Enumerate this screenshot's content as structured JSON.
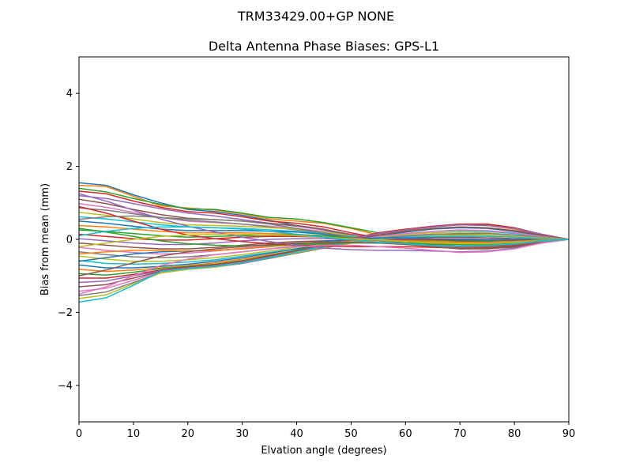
{
  "chart_data": {
    "type": "line",
    "suptitle": "TRM33429.00+GP  NONE",
    "title": "Delta Antenna Phase Biases: GPS-L1",
    "xlabel": "Elvation angle (degrees)",
    "ylabel": "Bias from mean (mm)",
    "xlim": [
      0,
      90
    ],
    "ylim": [
      -5,
      5
    ],
    "x_ticks": [
      0,
      10,
      20,
      30,
      40,
      50,
      60,
      70,
      80,
      90
    ],
    "x_tick_labels": [
      "0",
      "10",
      "20",
      "30",
      "40",
      "50",
      "60",
      "70",
      "80",
      "90"
    ],
    "y_ticks": [
      -4,
      -2,
      0,
      2,
      4
    ],
    "y_tick_labels": [
      "−4",
      "−2",
      "0",
      "2",
      "4"
    ],
    "grid": false,
    "legend": "none",
    "x": [
      0,
      5,
      10,
      15,
      20,
      25,
      30,
      35,
      40,
      45,
      50,
      55,
      60,
      65,
      70,
      75,
      80,
      85,
      90
    ],
    "colors": [
      "#1f77b4",
      "#ff7f0e",
      "#2ca02c",
      "#d62728",
      "#9467bd",
      "#8c564b",
      "#e377c2",
      "#7f7f7f",
      "#bcbd22",
      "#17becf"
    ],
    "series": [
      {
        "values": [
          1.55,
          1.48,
          1.22,
          1.0,
          0.82,
          0.76,
          0.66,
          0.52,
          0.38,
          0.26,
          0.1,
          -0.02,
          -0.12,
          -0.2,
          -0.26,
          -0.24,
          -0.18,
          -0.08,
          0.0
        ]
      },
      {
        "values": [
          1.48,
          1.45,
          1.18,
          0.92,
          0.86,
          0.8,
          0.7,
          0.56,
          0.5,
          0.44,
          0.3,
          0.12,
          -0.02,
          -0.14,
          -0.24,
          -0.26,
          -0.2,
          -0.1,
          0.0
        ]
      },
      {
        "values": [
          1.4,
          1.3,
          1.12,
          0.96,
          0.84,
          0.82,
          0.72,
          0.6,
          0.56,
          0.46,
          0.32,
          0.18,
          0.04,
          -0.1,
          -0.2,
          -0.24,
          -0.22,
          -0.1,
          0.0
        ]
      },
      {
        "values": [
          1.32,
          1.25,
          1.05,
          0.88,
          0.76,
          0.72,
          0.62,
          0.5,
          0.44,
          0.34,
          0.18,
          0.04,
          -0.06,
          -0.14,
          -0.18,
          -0.18,
          -0.14,
          -0.06,
          0.0
        ]
      },
      {
        "values": [
          1.2,
          1.12,
          0.98,
          0.84,
          0.72,
          0.64,
          0.54,
          0.44,
          0.36,
          0.26,
          0.14,
          0.04,
          -0.04,
          -0.1,
          -0.14,
          -0.14,
          -0.1,
          -0.04,
          0.0
        ]
      },
      {
        "values": [
          1.1,
          0.98,
          0.82,
          0.68,
          0.58,
          0.54,
          0.5,
          0.44,
          0.38,
          0.28,
          0.12,
          -0.02,
          -0.1,
          -0.16,
          -0.2,
          -0.18,
          -0.12,
          -0.04,
          0.0
        ]
      },
      {
        "values": [
          0.98,
          0.88,
          0.74,
          0.6,
          0.5,
          0.46,
          0.42,
          0.36,
          0.3,
          0.22,
          0.1,
          0.0,
          -0.06,
          -0.1,
          -0.12,
          -0.12,
          -0.08,
          -0.04,
          0.0
        ]
      },
      {
        "values": [
          0.86,
          0.8,
          0.7,
          0.6,
          0.52,
          0.48,
          0.42,
          0.34,
          0.26,
          0.18,
          0.08,
          0.0,
          -0.04,
          -0.08,
          -0.1,
          -0.1,
          -0.08,
          -0.04,
          0.0
        ]
      },
      {
        "values": [
          0.74,
          0.66,
          0.56,
          0.46,
          0.4,
          0.38,
          0.36,
          0.32,
          0.28,
          0.2,
          0.1,
          0.02,
          -0.04,
          -0.08,
          -0.1,
          -0.08,
          -0.06,
          -0.02,
          0.0
        ]
      },
      {
        "values": [
          0.62,
          0.56,
          0.48,
          0.4,
          0.34,
          0.32,
          0.3,
          0.26,
          0.22,
          0.16,
          0.08,
          0.02,
          -0.02,
          -0.06,
          -0.08,
          -0.08,
          -0.06,
          -0.02,
          0.0
        ]
      },
      {
        "values": [
          0.5,
          0.44,
          0.36,
          0.28,
          0.24,
          0.24,
          0.24,
          0.22,
          0.2,
          0.14,
          0.06,
          0.0,
          -0.02,
          -0.04,
          -0.06,
          -0.06,
          -0.04,
          -0.02,
          0.0
        ]
      },
      {
        "values": [
          0.38,
          0.34,
          0.28,
          0.22,
          0.18,
          0.18,
          0.18,
          0.16,
          0.14,
          0.1,
          0.04,
          0.0,
          -0.02,
          -0.04,
          -0.04,
          -0.04,
          -0.04,
          -0.02,
          0.0
        ]
      },
      {
        "values": [
          0.26,
          0.22,
          0.16,
          0.1,
          0.06,
          0.08,
          0.1,
          0.12,
          0.12,
          0.1,
          0.04,
          0.0,
          -0.02,
          -0.02,
          -0.04,
          -0.04,
          -0.02,
          0.0,
          0.0
        ]
      },
      {
        "values": [
          0.14,
          0.08,
          0.02,
          -0.02,
          -0.02,
          0.02,
          0.06,
          0.08,
          0.08,
          0.06,
          0.02,
          0.0,
          0.0,
          0.0,
          -0.02,
          -0.02,
          -0.02,
          0.0,
          0.0
        ]
      },
      {
        "values": [
          0.02,
          -0.04,
          -0.1,
          -0.14,
          -0.14,
          -0.1,
          -0.04,
          0.0,
          0.02,
          0.02,
          0.0,
          0.0,
          0.02,
          0.02,
          0.02,
          0.0,
          0.0,
          0.0,
          0.0
        ]
      },
      {
        "values": [
          -0.1,
          -0.16,
          -0.22,
          -0.26,
          -0.26,
          -0.22,
          -0.16,
          -0.1,
          -0.06,
          -0.04,
          -0.02,
          0.02,
          0.04,
          0.06,
          0.06,
          0.04,
          0.02,
          0.0,
          0.0
        ]
      },
      {
        "values": [
          -0.22,
          -0.3,
          -0.36,
          -0.4,
          -0.38,
          -0.32,
          -0.24,
          -0.18,
          -0.12,
          -0.08,
          -0.04,
          0.02,
          0.08,
          0.1,
          0.1,
          0.08,
          0.06,
          0.02,
          0.0
        ]
      },
      {
        "values": [
          -0.34,
          -0.42,
          -0.48,
          -0.5,
          -0.48,
          -0.42,
          -0.34,
          -0.26,
          -0.18,
          -0.12,
          -0.04,
          0.04,
          0.1,
          0.14,
          0.14,
          0.12,
          0.08,
          0.04,
          0.0
        ]
      },
      {
        "values": [
          -0.46,
          -0.54,
          -0.6,
          -0.6,
          -0.56,
          -0.5,
          -0.42,
          -0.32,
          -0.22,
          -0.14,
          -0.04,
          0.06,
          0.14,
          0.18,
          0.2,
          0.18,
          0.12,
          0.06,
          0.0
        ]
      },
      {
        "values": [
          -0.58,
          -0.66,
          -0.68,
          -0.66,
          -0.62,
          -0.56,
          -0.46,
          -0.36,
          -0.26,
          -0.16,
          -0.04,
          0.08,
          0.16,
          0.22,
          0.24,
          0.22,
          0.16,
          0.08,
          0.0
        ]
      },
      {
        "values": [
          -0.7,
          -0.78,
          -0.78,
          -0.74,
          -0.68,
          -0.6,
          -0.5,
          -0.38,
          -0.26,
          -0.14,
          -0.02,
          0.1,
          0.2,
          0.28,
          0.32,
          0.3,
          0.22,
          0.1,
          0.0
        ]
      },
      {
        "values": [
          -0.82,
          -0.88,
          -0.84,
          -0.78,
          -0.72,
          -0.64,
          -0.54,
          -0.42,
          -0.3,
          -0.16,
          -0.02,
          0.12,
          0.24,
          0.34,
          0.4,
          0.38,
          0.28,
          0.12,
          0.0
        ]
      },
      {
        "values": [
          -0.94,
          -0.98,
          -0.9,
          -0.8,
          -0.74,
          -0.68,
          -0.58,
          -0.44,
          -0.3,
          -0.14,
          0.02,
          0.16,
          0.26,
          0.34,
          0.4,
          0.4,
          0.3,
          0.14,
          0.0
        ]
      },
      {
        "values": [
          -1.06,
          -1.06,
          -0.96,
          -0.84,
          -0.76,
          -0.7,
          -0.6,
          -0.46,
          -0.32,
          -0.16,
          0.02,
          0.18,
          0.28,
          0.36,
          0.42,
          0.42,
          0.32,
          0.14,
          0.0
        ]
      },
      {
        "values": [
          -1.18,
          -1.14,
          -1.0,
          -0.86,
          -0.78,
          -0.72,
          -0.62,
          -0.48,
          -0.34,
          -0.18,
          0.0,
          0.16,
          0.26,
          0.34,
          0.4,
          0.38,
          0.3,
          0.14,
          0.0
        ]
      },
      {
        "values": [
          -1.3,
          -1.24,
          -1.06,
          -0.88,
          -0.8,
          -0.74,
          -0.64,
          -0.5,
          -0.36,
          -0.2,
          -0.02,
          0.12,
          0.22,
          0.3,
          0.34,
          0.32,
          0.24,
          0.12,
          0.0
        ]
      },
      {
        "values": [
          -1.42,
          -1.34,
          -1.12,
          -0.9,
          -0.8,
          -0.74,
          -0.64,
          -0.52,
          -0.38,
          -0.22,
          -0.06,
          0.08,
          0.16,
          0.22,
          0.26,
          0.24,
          0.18,
          0.08,
          0.0
        ]
      },
      {
        "values": [
          -1.54,
          -1.44,
          -1.18,
          -0.92,
          -0.82,
          -0.76,
          -0.66,
          -0.52,
          -0.38,
          -0.24,
          -0.1,
          0.02,
          0.1,
          0.14,
          0.16,
          0.16,
          0.12,
          0.06,
          0.0
        ]
      },
      {
        "values": [
          -1.62,
          -1.52,
          -1.22,
          -0.92,
          -0.82,
          -0.76,
          -0.64,
          -0.5,
          -0.36,
          -0.22,
          -0.1,
          0.0,
          0.06,
          0.1,
          0.12,
          0.12,
          0.08,
          0.04,
          0.0
        ]
      },
      {
        "values": [
          -1.72,
          -1.6,
          -1.26,
          -0.88,
          -0.8,
          -0.74,
          -0.64,
          -0.5,
          -0.34,
          -0.2,
          -0.08,
          0.02,
          0.06,
          0.08,
          0.08,
          0.08,
          0.06,
          0.02,
          0.0
        ]
      },
      {
        "values": [
          -0.6,
          -0.5,
          -0.4,
          -0.34,
          -0.32,
          -0.3,
          -0.26,
          -0.2,
          -0.12,
          -0.06,
          0.0,
          0.04,
          0.04,
          0.02,
          0.0,
          -0.02,
          -0.02,
          -0.02,
          0.0
        ]
      },
      {
        "values": [
          -0.4,
          -0.34,
          -0.3,
          -0.3,
          -0.32,
          -0.3,
          -0.26,
          -0.2,
          -0.14,
          -0.1,
          -0.06,
          -0.04,
          -0.04,
          -0.06,
          -0.08,
          -0.08,
          -0.06,
          -0.02,
          0.0
        ]
      },
      {
        "values": [
          0.3,
          0.2,
          0.08,
          -0.04,
          -0.12,
          -0.16,
          -0.18,
          -0.16,
          -0.14,
          -0.12,
          -0.1,
          -0.1,
          -0.1,
          -0.12,
          -0.14,
          -0.14,
          -0.1,
          -0.04,
          0.0
        ]
      },
      {
        "values": [
          0.9,
          0.72,
          0.5,
          0.28,
          0.12,
          0.02,
          -0.06,
          -0.12,
          -0.16,
          -0.18,
          -0.2,
          -0.2,
          -0.2,
          -0.22,
          -0.24,
          -0.22,
          -0.16,
          -0.06,
          0.0
        ]
      },
      {
        "values": [
          1.25,
          1.05,
          0.8,
          0.56,
          0.36,
          0.2,
          0.06,
          -0.06,
          -0.16,
          -0.24,
          -0.28,
          -0.3,
          -0.3,
          -0.32,
          -0.34,
          -0.32,
          -0.24,
          -0.1,
          0.0
        ]
      },
      {
        "values": [
          -1.0,
          -0.84,
          -0.64,
          -0.46,
          -0.34,
          -0.26,
          -0.2,
          -0.14,
          -0.1,
          -0.08,
          -0.08,
          -0.1,
          -0.14,
          -0.2,
          -0.26,
          -0.26,
          -0.2,
          -0.08,
          0.0
        ]
      },
      {
        "values": [
          -1.5,
          -1.3,
          -1.0,
          -0.72,
          -0.54,
          -0.42,
          -0.34,
          -0.26,
          -0.2,
          -0.16,
          -0.16,
          -0.2,
          -0.24,
          -0.3,
          -0.36,
          -0.34,
          -0.26,
          -0.1,
          0.0
        ]
      },
      {
        "values": [
          0.55,
          0.62,
          0.64,
          0.6,
          0.56,
          0.54,
          0.5,
          0.42,
          0.3,
          0.18,
          0.06,
          -0.04,
          -0.12,
          -0.18,
          -0.22,
          -0.2,
          -0.14,
          -0.06,
          0.0
        ]
      },
      {
        "values": [
          -0.2,
          -0.1,
          0.0,
          0.08,
          0.12,
          0.14,
          0.14,
          0.12,
          0.1,
          0.06,
          0.02,
          -0.02,
          -0.06,
          -0.1,
          -0.12,
          -0.12,
          -0.08,
          -0.04,
          0.0
        ]
      },
      {
        "values": [
          0.1,
          0.22,
          0.3,
          0.34,
          0.34,
          0.32,
          0.28,
          0.22,
          0.14,
          0.06,
          -0.02,
          -0.08,
          -0.12,
          -0.16,
          -0.18,
          -0.16,
          -0.12,
          -0.04,
          0.0
        ]
      }
    ]
  }
}
